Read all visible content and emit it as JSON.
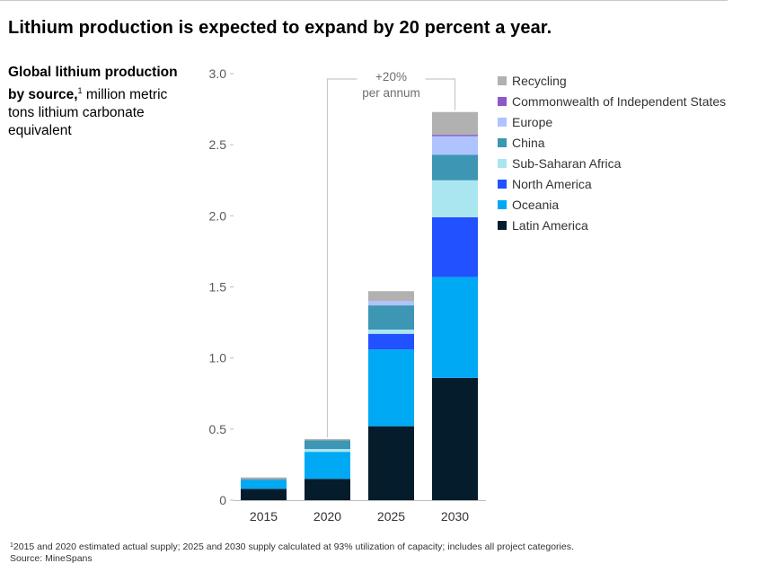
{
  "title": "Lithium production is expected to expand by 20 percent a year.",
  "subtitle": {
    "bold": "Global lithium production by source,",
    "sup": "1",
    "rest": "million metric tons lithium carbonate equivalent"
  },
  "annotation": {
    "value": "+20%",
    "label": "per annum"
  },
  "footnote": {
    "marker": "1",
    "text": "2015 and 2020 estimated actual supply; 2025 and 2030 supply calculated at 93% utilization of capacity; includes all project categories.",
    "source": "Source: MineSpans"
  },
  "chart_data": {
    "type": "bar",
    "stacked": true,
    "categories": [
      "2015",
      "2020",
      "2025",
      "2030"
    ],
    "ylim": [
      0,
      3.0
    ],
    "yticks": [
      {
        "value": 0,
        "label": "0"
      },
      {
        "value": 0.5,
        "label": "0.5"
      },
      {
        "value": 1.0,
        "label": "1.0"
      },
      {
        "value": 1.5,
        "label": "1.5"
      },
      {
        "value": 2.0,
        "label": "2.0"
      },
      {
        "value": 2.5,
        "label": "2.5"
      },
      {
        "value": 3.0,
        "label": "3.0"
      }
    ],
    "grid": false,
    "legend_position": "right",
    "series": [
      {
        "name": "Latin America",
        "color": "#051c2c",
        "values": [
          0.08,
          0.15,
          0.52,
          0.86
        ]
      },
      {
        "name": "Oceania",
        "color": "#00a9f4",
        "values": [
          0.06,
          0.19,
          0.54,
          0.71
        ]
      },
      {
        "name": "North America",
        "color": "#2251ff",
        "values": [
          0.0,
          0.0,
          0.11,
          0.42
        ]
      },
      {
        "name": "Sub-Saharan Africa",
        "color": "#aae6f0",
        "values": [
          0.0,
          0.02,
          0.03,
          0.26
        ]
      },
      {
        "name": "China",
        "color": "#3c96b4",
        "values": [
          0.01,
          0.06,
          0.17,
          0.18
        ]
      },
      {
        "name": "Europe",
        "color": "#afc3ff",
        "values": [
          0.0,
          0.0,
          0.03,
          0.13
        ]
      },
      {
        "name": "Commonwealth of Independent States",
        "color": "#8c5ac8",
        "values": [
          0.0,
          0.0,
          0.0,
          0.01
        ]
      },
      {
        "name": "Recycling",
        "color": "#b1b1b1",
        "values": [
          0.01,
          0.01,
          0.07,
          0.16
        ]
      }
    ]
  }
}
